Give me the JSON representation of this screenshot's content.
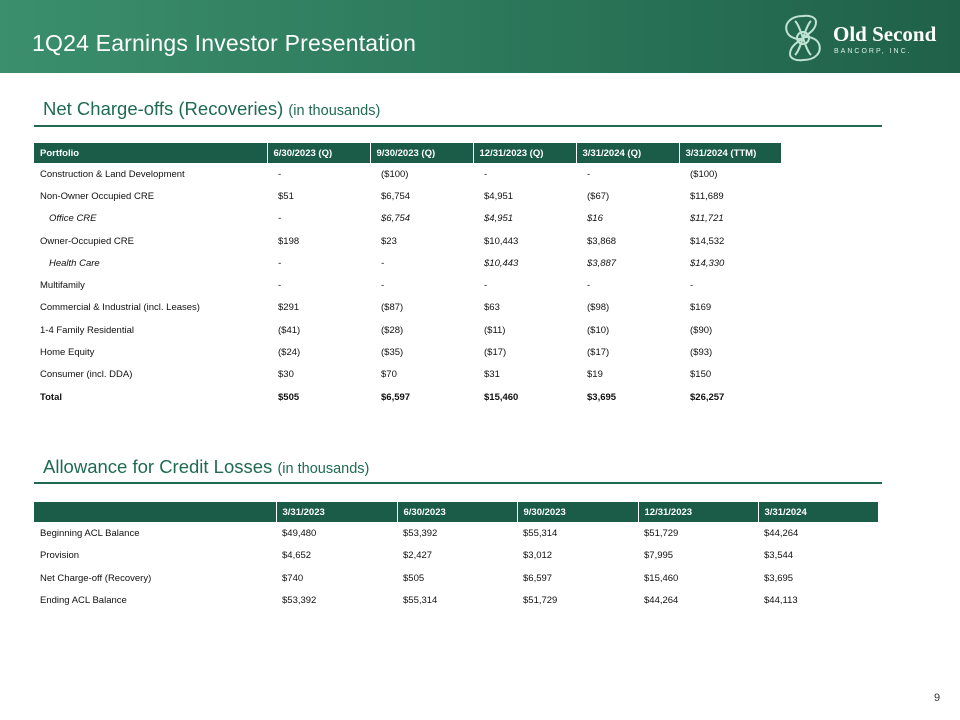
{
  "header": {
    "title": "1Q24 Earnings Investor Presentation",
    "logo": {
      "name": "Old Second",
      "sub": "BANCORP, INC.",
      "icon": "old-second-knot-logo-icon"
    }
  },
  "colors": {
    "brand_green": "#1f6b50",
    "header_green": "#2e7b5d",
    "table_header": "#1a5c47"
  },
  "nco": {
    "title": "Net Charge-offs (Recoveries)",
    "unit": "(in thousands)",
    "columns": [
      "Portfolio",
      "6/30/2023 (Q)",
      "9/30/2023 (Q)",
      "12/31/2023 (Q)",
      "3/31/2024 (Q)",
      "3/31/2024 (TTM)"
    ],
    "rows": [
      {
        "cells": [
          "Construction & Land Development",
          "-",
          "($100)",
          "-",
          "-",
          "($100)"
        ]
      },
      {
        "cells": [
          "Non-Owner Occupied CRE",
          "$51",
          "$6,754",
          "$4,951",
          "($67)",
          "$11,689"
        ]
      },
      {
        "cells": [
          "Office CRE",
          "-",
          "$6,754",
          "$4,951",
          "$16",
          "$11,721"
        ]
      },
      {
        "cells": [
          "Owner-Occupied CRE",
          "$198",
          "$23",
          "$10,443",
          "$3,868",
          "$14,532"
        ]
      },
      {
        "cells": [
          "Health Care",
          "-",
          "-",
          "$10,443",
          "$3,887",
          "$14,330"
        ]
      },
      {
        "cells": [
          "Multifamily",
          "-",
          "-",
          "-",
          "-",
          "-"
        ]
      },
      {
        "cells": [
          "Commercial & Industrial (incl. Leases)",
          "$291",
          "($87)",
          "$63",
          "($98)",
          "$169"
        ]
      },
      {
        "cells": [
          "1-4 Family Residential",
          "($41)",
          "($28)",
          "($11)",
          "($10)",
          "($90)"
        ]
      },
      {
        "cells": [
          "Home Equity",
          "($24)",
          "($35)",
          "($17)",
          "($17)",
          "($93)"
        ]
      },
      {
        "cells": [
          "Consumer (incl. DDA)",
          "$30",
          "$70",
          "$31",
          "$19",
          "$150"
        ]
      },
      {
        "cells": [
          "Total",
          "$505",
          "$6,597",
          "$15,460",
          "$3,695",
          "$26,257"
        ]
      }
    ]
  },
  "acl": {
    "title": "Allowance for Credit Losses",
    "unit": "(in thousands)",
    "columns": [
      "",
      "3/31/2023",
      "6/30/2023",
      "9/30/2023",
      "12/31/2023",
      "3/31/2024"
    ],
    "rows": [
      {
        "cells": [
          "Beginning ACL Balance",
          "$49,480",
          "$53,392",
          "$55,314",
          "$51,729",
          "$44,264"
        ]
      },
      {
        "cells": [
          "Provision",
          "$4,652",
          "$2,427",
          "$3,012",
          "$7,995",
          "$3,544"
        ]
      },
      {
        "cells": [
          "Net Charge-off (Recovery)",
          "$740",
          "$505",
          "$6,597",
          "$15,460",
          "$3,695"
        ]
      },
      {
        "cells": [
          "Ending ACL Balance",
          "$53,392",
          "$55,314",
          "$51,729",
          "$44,264",
          "$44,113"
        ]
      }
    ]
  },
  "page_number": "9"
}
